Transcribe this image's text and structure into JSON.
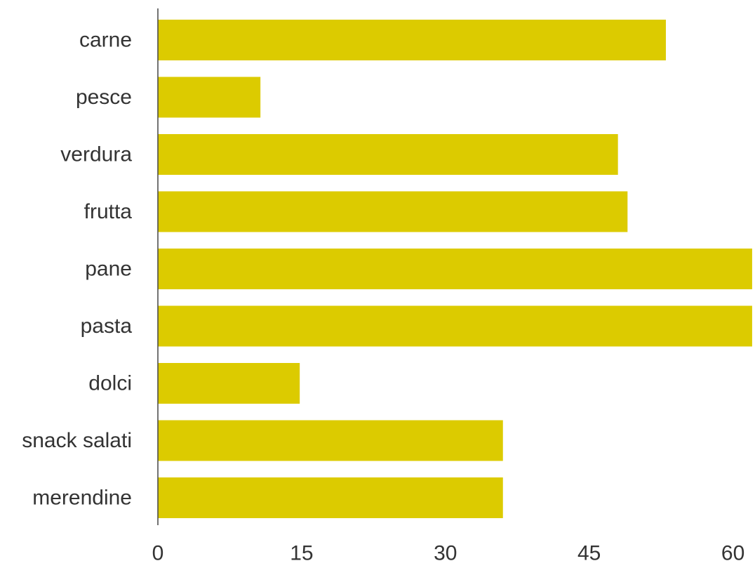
{
  "chart_data": {
    "type": "bar",
    "orientation": "horizontal",
    "categories": [
      "carne",
      "pesce",
      "verdura",
      "frutta",
      "pane",
      "pasta",
      "dolci",
      "snack salati",
      "merendine"
    ],
    "values": [
      53,
      10.7,
      48,
      49,
      62,
      62,
      14.8,
      36,
      36
    ],
    "xlim": [
      0,
      62
    ],
    "xticks": [
      0,
      15,
      30,
      45,
      60
    ],
    "title": "",
    "xlabel": "",
    "ylabel": "",
    "grid": false,
    "legend": "none",
    "colors": {
      "bar": "#dccb00",
      "axis": "#444444",
      "tick_text": "#333333",
      "label_text": "#333333"
    }
  }
}
